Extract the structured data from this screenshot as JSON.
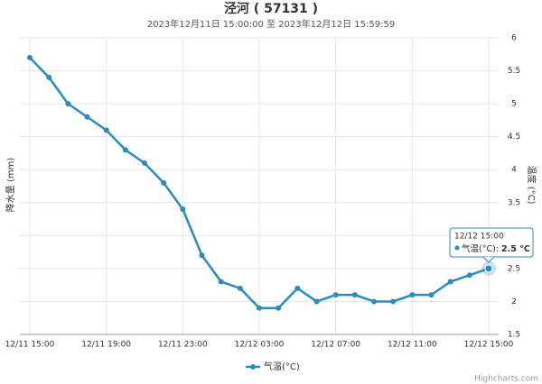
{
  "chart_data": {
    "type": "line",
    "title": "泾河 ( 57131 )",
    "subtitle": "2023年12月11日 15:00:00 至 2023年12月12日 15:59:59",
    "ylabel": "降水量 (mm)",
    "y2label": "温度 (°C)",
    "categories": [
      "12/11 15:00",
      null,
      null,
      null,
      "12/11 19:00",
      null,
      null,
      null,
      "12/11 23:00",
      null,
      null,
      null,
      "12/12 03:00",
      null,
      null,
      null,
      "12/12 07:00",
      null,
      null,
      null,
      "12/12 11:00",
      null,
      null,
      null,
      "12/12 15:00"
    ],
    "series": [
      {
        "name": "气温(°C)",
        "color": "#2b8cbe",
        "axis": "y2",
        "values": [
          5.7,
          5.4,
          5.0,
          4.8,
          4.6,
          4.3,
          4.1,
          3.8,
          3.4,
          2.7,
          2.3,
          2.2,
          1.9,
          1.9,
          2.2,
          2.0,
          2.1,
          2.1,
          2.0,
          2.0,
          2.1,
          2.1,
          2.3,
          2.4,
          2.5
        ]
      }
    ],
    "y2lim": [
      1.5,
      6
    ],
    "y2ticks": [
      1.5,
      2,
      2.5,
      3,
      3.5,
      4,
      4.5,
      5,
      5.5,
      6
    ],
    "grid": true,
    "legend": "bottom",
    "tooltip": {
      "series": "气温(°C):",
      "value": "2.5 °C"
    },
    "credit": "Highcharts.com"
  }
}
